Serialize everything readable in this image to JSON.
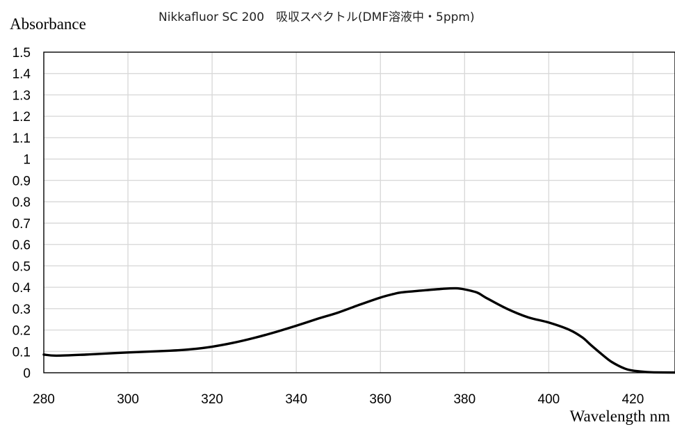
{
  "chart_data": {
    "type": "line",
    "title": "Nikkafluor SC 200　吸収スペクトル(DMF溶液中・5ppm)",
    "xlabel": "Wavelength nm",
    "ylabel": "Absorbance",
    "xlim": [
      280,
      430
    ],
    "ylim": [
      0,
      1.5
    ],
    "x_ticks": [
      "280",
      "300",
      "320",
      "340",
      "360",
      "380",
      "400",
      "420"
    ],
    "y_ticks": [
      "0",
      "0.1",
      "0.2",
      "0.3",
      "0.4",
      "0.5",
      "0.6",
      "0.7",
      "0.8",
      "0.9",
      "1",
      "1.1",
      "1.2",
      "1.3",
      "1.4",
      "1.5"
    ],
    "grid": true,
    "legend": "none",
    "series": [
      {
        "color": "#000000",
        "x": [
          280,
          283,
          290,
          300,
          310,
          315,
          320,
          325,
          330,
          335,
          340,
          345,
          350,
          355,
          360,
          363,
          365,
          370,
          375,
          378,
          380,
          383,
          385,
          390,
          395,
          400,
          405,
          408,
          410,
          413,
          415,
          418,
          420,
          423,
          425,
          430
        ],
        "y": [
          0.085,
          0.08,
          0.085,
          0.095,
          0.103,
          0.11,
          0.122,
          0.14,
          0.163,
          0.19,
          0.22,
          0.252,
          0.282,
          0.318,
          0.352,
          0.368,
          0.376,
          0.385,
          0.393,
          0.395,
          0.39,
          0.375,
          0.352,
          0.3,
          0.26,
          0.235,
          0.2,
          0.165,
          0.13,
          0.08,
          0.05,
          0.02,
          0.01,
          0.004,
          0.002,
          0.001
        ]
      }
    ]
  }
}
